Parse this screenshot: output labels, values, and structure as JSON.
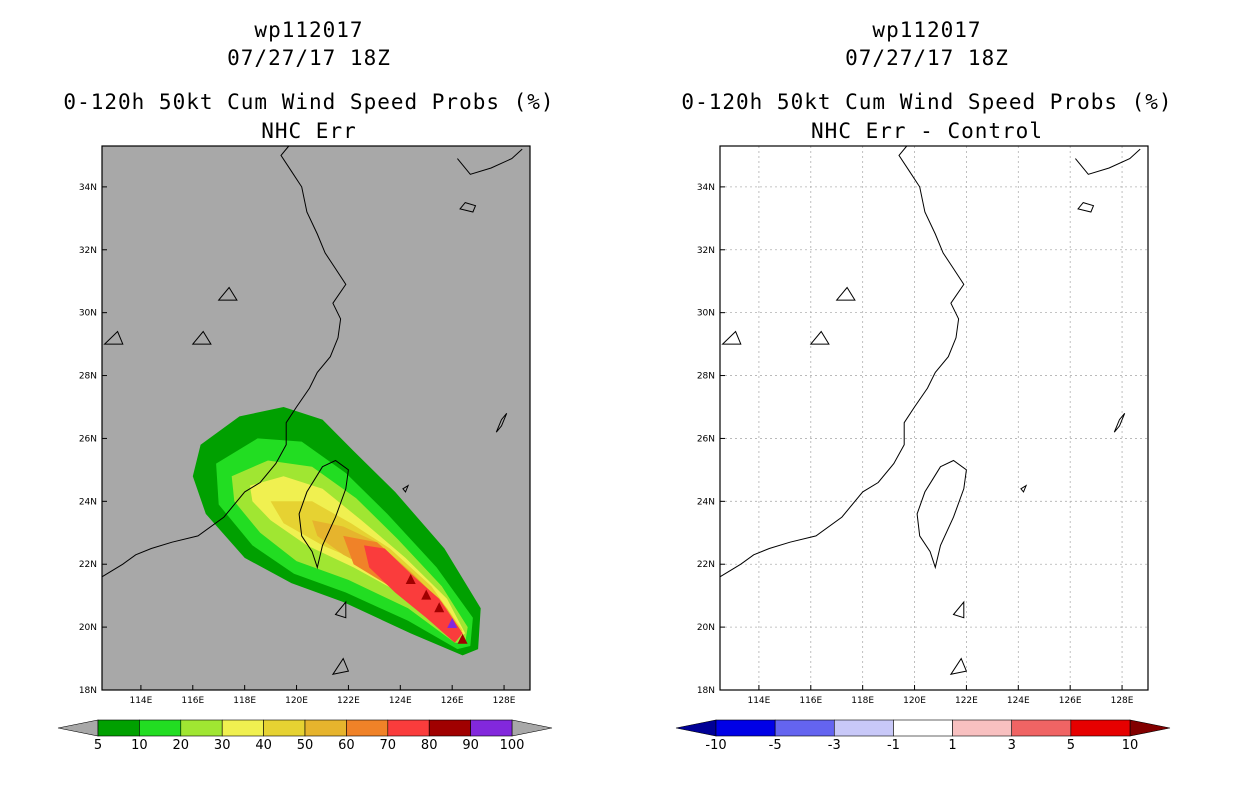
{
  "chart_data": [
    {
      "type": "map-filled-contour",
      "title_lines": [
        "wp112017",
        "07/27/17 18Z",
        "0-120h 50kt Cum Wind Speed Probs (%)",
        "NHC Err"
      ],
      "lon_range": [
        112.5,
        129
      ],
      "lat_range": [
        18,
        35.3
      ],
      "x_ticks": [
        "114E",
        "116E",
        "118E",
        "120E",
        "122E",
        "124E",
        "126E",
        "128E"
      ],
      "y_ticks": [
        "18N",
        "20N",
        "22N",
        "24N",
        "26N",
        "28N",
        "30N",
        "32N",
        "34N"
      ],
      "background": "#a8a8a8",
      "contour_levels": [
        5,
        10,
        20,
        30,
        40,
        50,
        60,
        70,
        80,
        90,
        100
      ],
      "colorbar": {
        "labels": [
          "5",
          "10",
          "20",
          "30",
          "40",
          "50",
          "60",
          "70",
          "80",
          "90",
          "100"
        ],
        "colors": [
          "#00a000",
          "#22dd22",
          "#a0e632",
          "#f0f050",
          "#e6d232",
          "#e6b42d",
          "#f08228",
          "#fa3c3c",
          "#a00000",
          "#8228dc"
        ],
        "end_colors": [
          "#a8a8a8",
          "#a8a8a8"
        ]
      },
      "probability_bands": [
        {
          "level": 5,
          "color": "#00a000",
          "poly": [
            [
              116.3,
              25.8
            ],
            [
              117.8,
              26.7
            ],
            [
              119.5,
              27.0
            ],
            [
              121.0,
              26.6
            ],
            [
              122.2,
              25.6
            ],
            [
              123.8,
              24.3
            ],
            [
              125.7,
              22.5
            ],
            [
              127.1,
              20.6
            ],
            [
              127.0,
              19.3
            ],
            [
              126.4,
              19.1
            ],
            [
              124.4,
              19.8
            ],
            [
              121.8,
              20.8
            ],
            [
              119.8,
              21.4
            ],
            [
              118.0,
              22.2
            ],
            [
              116.5,
              23.6
            ],
            [
              116.0,
              24.8
            ]
          ]
        },
        {
          "level": 10,
          "color": "#22dd22",
          "poly": [
            [
              116.9,
              25.2
            ],
            [
              118.5,
              26.0
            ],
            [
              120.2,
              25.9
            ],
            [
              121.9,
              24.9
            ],
            [
              123.5,
              23.6
            ],
            [
              125.4,
              21.9
            ],
            [
              126.8,
              20.3
            ],
            [
              126.7,
              19.4
            ],
            [
              126.2,
              19.3
            ],
            [
              124.3,
              20.2
            ],
            [
              121.9,
              21.1
            ],
            [
              119.9,
              21.7
            ],
            [
              118.3,
              22.6
            ],
            [
              117.0,
              23.9
            ]
          ]
        },
        {
          "level": 20,
          "color": "#a0e632",
          "poly": [
            [
              117.5,
              24.8
            ],
            [
              118.9,
              25.3
            ],
            [
              120.6,
              25.1
            ],
            [
              122.3,
              24.1
            ],
            [
              123.9,
              22.8
            ],
            [
              125.6,
              21.3
            ],
            [
              126.6,
              20.0
            ],
            [
              126.5,
              19.5
            ],
            [
              126.1,
              19.5
            ],
            [
              124.3,
              20.6
            ],
            [
              122.0,
              21.5
            ],
            [
              120.0,
              22.1
            ],
            [
              118.6,
              23.0
            ],
            [
              117.6,
              24.0
            ]
          ]
        },
        {
          "level": 30,
          "color": "#f0f050",
          "poly": [
            [
              118.2,
              24.5
            ],
            [
              119.5,
              24.8
            ],
            [
              121.0,
              24.4
            ],
            [
              122.5,
              23.4
            ],
            [
              124.2,
              22.2
            ],
            [
              125.8,
              20.9
            ],
            [
              126.5,
              19.8
            ],
            [
              126.1,
              19.6
            ],
            [
              124.4,
              20.9
            ],
            [
              122.2,
              21.9
            ],
            [
              120.4,
              22.6
            ],
            [
              119.0,
              23.4
            ],
            [
              118.3,
              24.0
            ]
          ]
        },
        {
          "level": 40,
          "color": "#e6d232",
          "poly": [
            [
              119.0,
              24.0
            ],
            [
              120.6,
              24.0
            ],
            [
              122.1,
              23.3
            ],
            [
              123.6,
              22.5
            ],
            [
              125.2,
              21.3
            ],
            [
              126.4,
              19.9
            ],
            [
              126.1,
              19.7
            ],
            [
              124.6,
              21.0
            ],
            [
              122.7,
              22.0
            ],
            [
              121.0,
              22.6
            ],
            [
              119.5,
              23.3
            ]
          ]
        },
        {
          "level": 50,
          "color": "#e6b42d",
          "poly": [
            [
              120.6,
              23.4
            ],
            [
              121.8,
              23.2
            ],
            [
              123.1,
              22.7
            ],
            [
              124.5,
              21.7
            ],
            [
              125.8,
              20.6
            ],
            [
              126.4,
              19.8
            ],
            [
              126.0,
              19.7
            ],
            [
              124.7,
              20.9
            ],
            [
              123.2,
              21.7
            ],
            [
              121.8,
              22.3
            ],
            [
              120.8,
              22.9
            ]
          ]
        },
        {
          "level": 60,
          "color": "#f08228",
          "poly": [
            [
              121.8,
              22.9
            ],
            [
              123.1,
              22.7
            ],
            [
              124.3,
              21.8
            ],
            [
              125.6,
              20.8
            ],
            [
              126.4,
              19.8
            ],
            [
              126.0,
              19.6
            ],
            [
              124.8,
              20.6
            ],
            [
              123.4,
              21.4
            ],
            [
              122.2,
              22.0
            ]
          ]
        },
        {
          "level": 70,
          "color": "#fa3c3c",
          "poly": [
            [
              122.6,
              22.6
            ],
            [
              123.4,
              22.5
            ],
            [
              124.4,
              21.7
            ],
            [
              125.5,
              20.9
            ],
            [
              126.4,
              19.8
            ],
            [
              126.1,
              19.5
            ],
            [
              125.0,
              20.3
            ],
            [
              123.8,
              21.1
            ],
            [
              122.8,
              21.9
            ]
          ]
        }
      ],
      "high_markers": [
        {
          "lon": 124.4,
          "lat": 21.5,
          "color": "#a00000"
        },
        {
          "lon": 125.0,
          "lat": 21.0,
          "color": "#a00000"
        },
        {
          "lon": 125.5,
          "lat": 20.6,
          "color": "#a00000"
        },
        {
          "lon": 126.0,
          "lat": 20.1,
          "color": "#8228dc"
        },
        {
          "lon": 126.4,
          "lat": 19.6,
          "color": "#a00000"
        }
      ]
    },
    {
      "type": "map-filled-contour",
      "title_lines": [
        "wp112017",
        "07/27/17 18Z",
        "0-120h 50kt Cum Wind Speed Probs (%)",
        "NHC Err - Control"
      ],
      "lon_range": [
        112.5,
        129
      ],
      "lat_range": [
        18,
        35.3
      ],
      "x_ticks": [
        "114E",
        "116E",
        "118E",
        "120E",
        "122E",
        "124E",
        "126E",
        "128E"
      ],
      "y_ticks": [
        "18N",
        "20N",
        "22N",
        "24N",
        "26N",
        "28N",
        "30N",
        "32N",
        "34N"
      ],
      "background": "#ffffff",
      "grid": true,
      "contour_levels": [
        -10,
        -5,
        -3,
        -1,
        1,
        3,
        5,
        10
      ],
      "colorbar": {
        "labels": [
          "-10",
          "-5",
          "-3",
          "-1",
          "1",
          "3",
          "5",
          "10"
        ],
        "colors": [
          "#0000e6",
          "#6464f0",
          "#c8c8f8",
          "#ffffff",
          "#f8c0c0",
          "#f06464",
          "#e60000"
        ],
        "end_colors": [
          "#000096",
          "#820000"
        ]
      },
      "values": "all differences within -1..1"
    }
  ]
}
